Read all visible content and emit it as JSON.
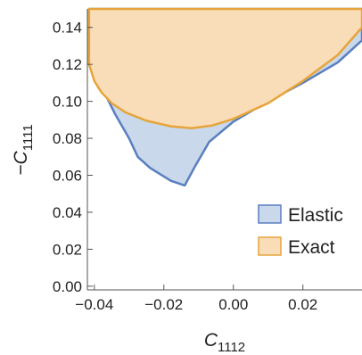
{
  "chart_data": {
    "type": "area",
    "xlabel": {
      "main": "C",
      "sub": "1112"
    },
    "ylabel": {
      "prefix": "−",
      "main": "C",
      "sub": "1111"
    },
    "xlim": [
      -0.042,
      0.037
    ],
    "ylim": [
      -0.002,
      0.15
    ],
    "x_ticks": [
      {
        "value": -0.04,
        "label": "−0.04"
      },
      {
        "value": -0.02,
        "label": "−0.02"
      },
      {
        "value": 0.0,
        "label": "0.00"
      },
      {
        "value": 0.02,
        "label": "0.02"
      }
    ],
    "y_ticks": [
      {
        "value": 0.0,
        "label": "0.00"
      },
      {
        "value": 0.02,
        "label": "0.02"
      },
      {
        "value": 0.04,
        "label": "0.04"
      },
      {
        "value": 0.06,
        "label": "0.06"
      },
      {
        "value": 0.08,
        "label": "0.08"
      },
      {
        "value": 0.1,
        "label": "0.10"
      },
      {
        "value": 0.12,
        "label": "0.12"
      },
      {
        "value": 0.14,
        "label": "0.14"
      }
    ],
    "grid": false,
    "legend_position": "bottom-right",
    "series": [
      {
        "name": "Elastic",
        "fill": "#c9d8ea",
        "stroke": "#5a7fbf",
        "boundary": [
          [
            -0.0415,
            0.15
          ],
          [
            0.037,
            0.15
          ],
          [
            0.037,
            0.133
          ],
          [
            0.03,
            0.121
          ],
          [
            0.02,
            0.11
          ],
          [
            0.01,
            0.1
          ],
          [
            0.0,
            0.089
          ],
          [
            -0.007,
            0.078
          ],
          [
            -0.011,
            0.065
          ],
          [
            -0.014,
            0.0545
          ],
          [
            -0.018,
            0.057
          ],
          [
            -0.024,
            0.064
          ],
          [
            -0.0275,
            0.07
          ],
          [
            -0.03,
            0.08
          ],
          [
            -0.034,
            0.093
          ],
          [
            -0.038,
            0.108
          ],
          [
            -0.0415,
            0.12
          ]
        ]
      },
      {
        "name": "Exact",
        "fill": "#f9ddb8",
        "stroke": "#e6a53a",
        "boundary": [
          [
            -0.0415,
            0.15
          ],
          [
            0.037,
            0.15
          ],
          [
            0.037,
            0.14
          ],
          [
            0.03,
            0.125
          ],
          [
            0.02,
            0.111
          ],
          [
            0.01,
            0.099
          ],
          [
            0.0,
            0.0905
          ],
          [
            -0.006,
            0.087
          ],
          [
            -0.012,
            0.0855
          ],
          [
            -0.018,
            0.0865
          ],
          [
            -0.025,
            0.0895
          ],
          [
            -0.031,
            0.094
          ],
          [
            -0.035,
            0.099
          ],
          [
            -0.038,
            0.105
          ],
          [
            -0.04,
            0.111
          ],
          [
            -0.0415,
            0.12
          ]
        ]
      }
    ]
  }
}
